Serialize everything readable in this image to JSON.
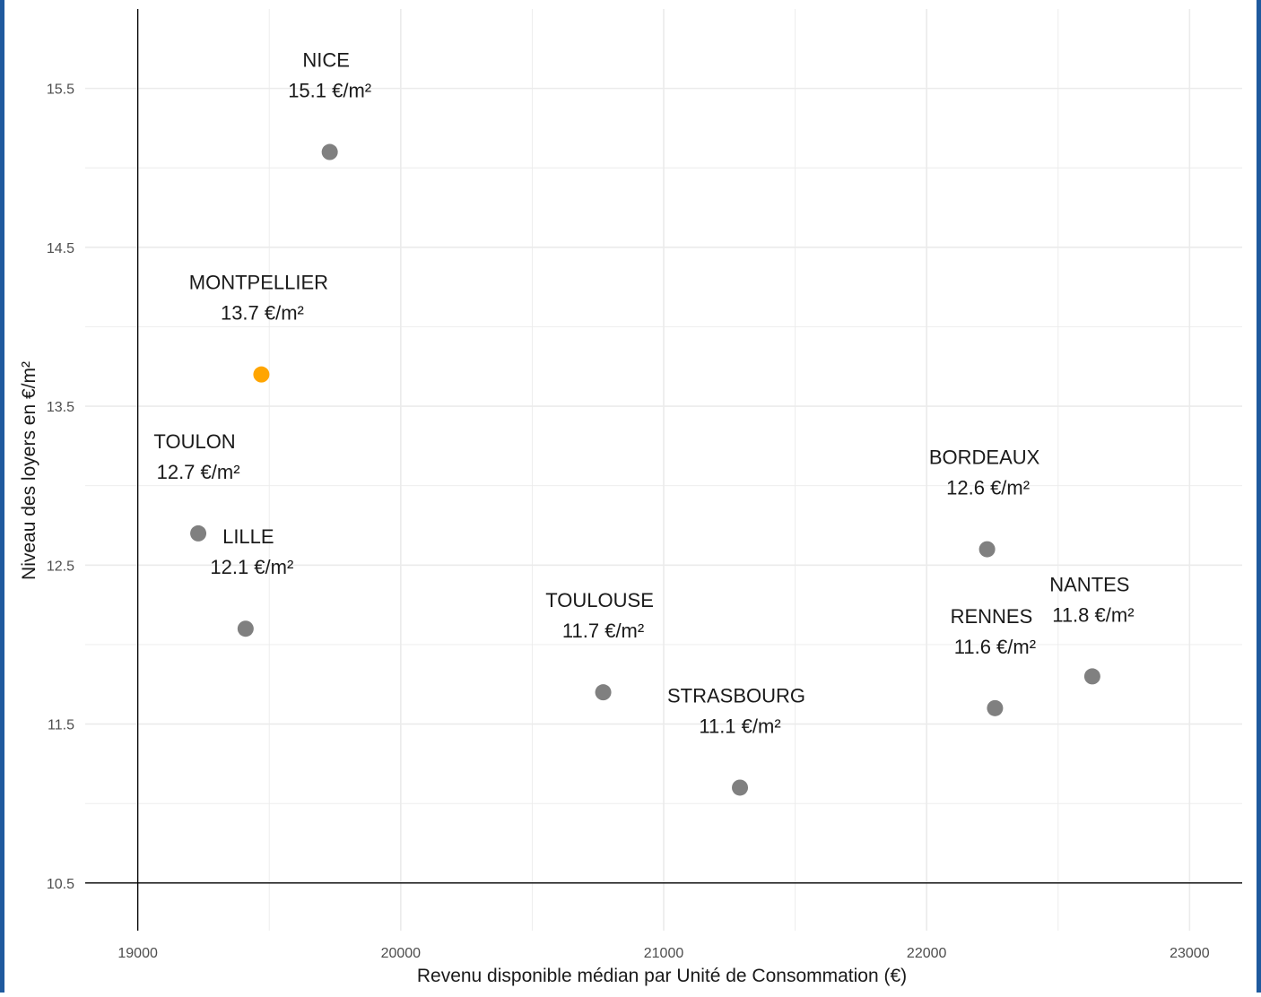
{
  "chart_data": {
    "type": "scatter",
    "title": "",
    "xlabel": "Revenu disponible médian par Unité de Consommation (€)",
    "ylabel": "Niveau des loyers en €/m²",
    "xlim": [
      18800,
      23200
    ],
    "ylim": [
      10.2,
      16.0
    ],
    "x_ticks": [
      19000,
      20000,
      21000,
      22000,
      23000
    ],
    "x_tick_labels": [
      "19000",
      "20000",
      "21000",
      "22000",
      "23000"
    ],
    "y_ticks": [
      10.5,
      11.5,
      12.5,
      13.5,
      14.5,
      15.5
    ],
    "y_tick_labels": [
      "10.5",
      "11.5",
      "12.5",
      "13.5",
      "14.5",
      "15.5"
    ],
    "grid": true,
    "legend": "none",
    "colors": {
      "default_point": "#808080",
      "highlight_point": "#ffa500",
      "grid": "#ebebeb",
      "axis": "#000000",
      "frame": "#1f5a9e"
    },
    "points": [
      {
        "city": "NICE",
        "value_label": "15.1 €/m²",
        "x": 19730,
        "y": 15.1,
        "highlight": false
      },
      {
        "city": "MONTPELLIER",
        "value_label": "13.7 €/m²",
        "x": 19470,
        "y": 13.7,
        "highlight": true
      },
      {
        "city": "TOULON",
        "value_label": "12.7 €/m²",
        "x": 19230,
        "y": 12.7,
        "highlight": false
      },
      {
        "city": "LILLE",
        "value_label": "12.1 €/m²",
        "x": 19410,
        "y": 12.1,
        "highlight": false
      },
      {
        "city": "TOULOUSE",
        "value_label": "11.7 €/m²",
        "x": 20770,
        "y": 11.7,
        "highlight": false
      },
      {
        "city": "STRASBOURG",
        "value_label": "11.1 €/m²",
        "x": 21290,
        "y": 11.1,
        "highlight": false
      },
      {
        "city": "BORDEAUX",
        "value_label": "12.6 €/m²",
        "x": 22230,
        "y": 12.6,
        "highlight": false
      },
      {
        "city": "RENNES",
        "value_label": "11.6 €/m²",
        "x": 22260,
        "y": 11.6,
        "highlight": false
      },
      {
        "city": "NANTES",
        "value_label": "11.8 €/m²",
        "x": 22630,
        "y": 11.8,
        "highlight": false
      }
    ]
  }
}
